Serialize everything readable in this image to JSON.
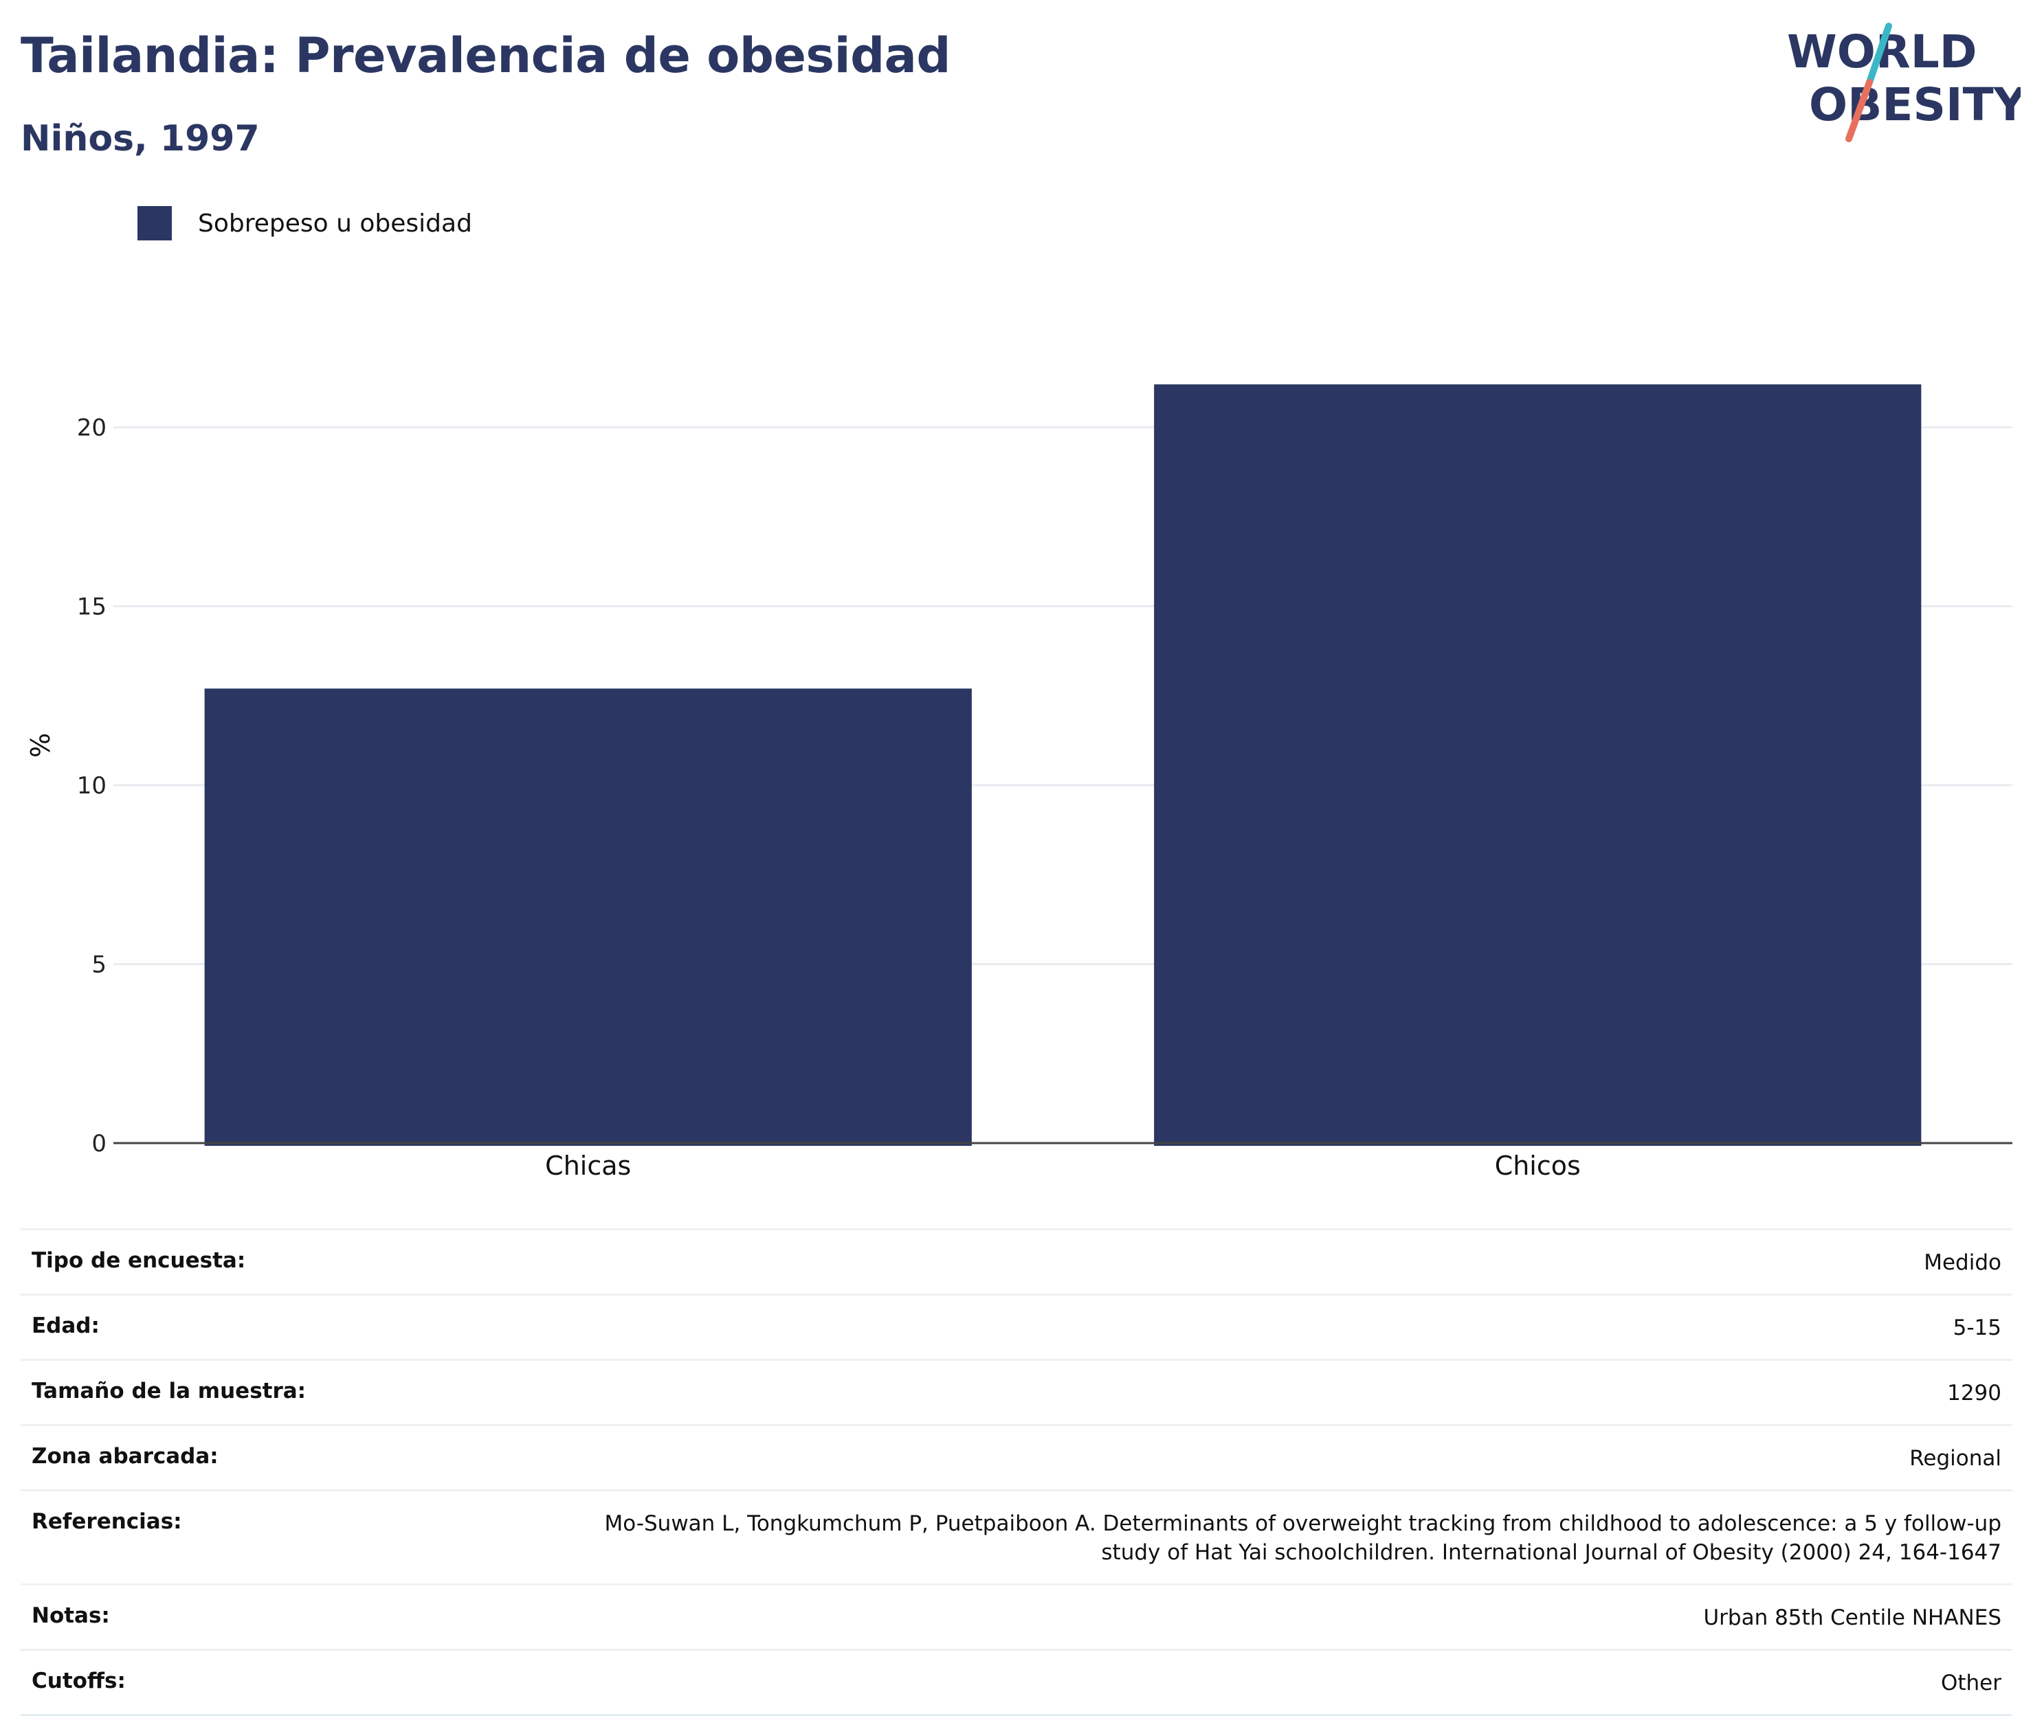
{
  "header": {
    "title": "Tailandia: Prevalencia de obesidad",
    "subtitle": "Niños, 1997"
  },
  "logo": {
    "line1": "WORLD",
    "line2": "OBESITY"
  },
  "legend": {
    "label": "Sobrepeso u obesidad",
    "color": "#2b3762"
  },
  "chart_data": {
    "type": "bar",
    "title": "Tailandia: Prevalencia de obesidad",
    "subtitle": "Niños, 1997",
    "categories": [
      "Chicas",
      "Chicos"
    ],
    "series": [
      {
        "name": "Sobrepeso u obesidad",
        "values": [
          12.7,
          21.2
        ],
        "color": "#2b3762"
      }
    ],
    "xlabel": "",
    "ylabel": "%",
    "ylim": [
      0,
      23.3
    ],
    "yticks": [
      0,
      5,
      10,
      15,
      20
    ],
    "grid": true,
    "legend_position": "top-left"
  },
  "info": [
    {
      "key": "Tipo de encuesta:",
      "value": [
        "Medido"
      ]
    },
    {
      "key": "Edad:",
      "value": [
        "5-15"
      ]
    },
    {
      "key": "Tamaño de la muestra:",
      "value": [
        "1290"
      ]
    },
    {
      "key": "Zona abarcada:",
      "value": [
        "Regional"
      ]
    },
    {
      "key": "Referencias:",
      "value": [
        "Mo-Suwan L, Tongkumchum P, Puetpaiboon A. Determinants of overweight tracking from childhood to adolescence: a 5 y follow-up",
        "study of Hat Yai schoolchildren. International Journal of Obesity (2000) 24, 164-1647"
      ]
    },
    {
      "key": "Notas:",
      "value": [
        "Urban 85th Centile NHANES"
      ]
    },
    {
      "key": "Cutoffs:",
      "value": [
        "Other"
      ]
    }
  ]
}
